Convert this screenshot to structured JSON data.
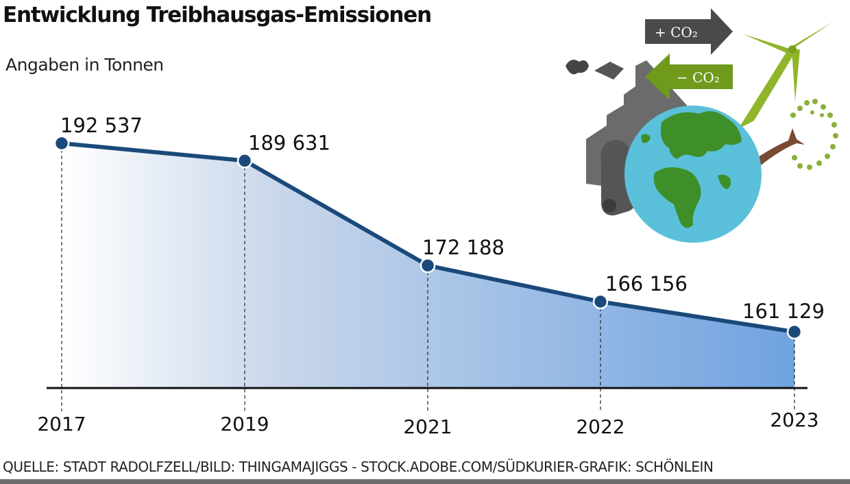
{
  "header": {
    "title": "Entwicklung Treibhausgas-Emissionen",
    "subtitle": "Angaben in Tonnen"
  },
  "illustration": {
    "plus_label": "+ CO₂",
    "minus_label": "− CO₂"
  },
  "footer": {
    "source": "QUELLE: STADT RADOLFZELL/BILD: THINGAMAJIGGS - STOCK.ADOBE.COM/SÜDKURIER-GRAFIK: SCHÖNLEIN"
  },
  "colors": {
    "line": "#1b4a7a",
    "fill_light": "#ffffff",
    "fill_dark": "#6fa3e0",
    "axis": "#111111",
    "plus_arrow": "#4a4a4a",
    "minus_arrow": "#6f9a1c"
  },
  "chart_data": {
    "type": "area",
    "categories": [
      "2017",
      "2019",
      "2021",
      "2022",
      "2023"
    ],
    "values": [
      192537,
      189631,
      172188,
      166156,
      161129
    ],
    "data_labels": [
      "192 537",
      "189 631",
      "172 188",
      "166 156",
      "161 129"
    ],
    "title": "Entwicklung Treibhausgas-Emissionen",
    "subtitle": "Angaben in Tonnen",
    "xlabel": "",
    "ylabel": "",
    "grid": false,
    "legend": "none"
  }
}
